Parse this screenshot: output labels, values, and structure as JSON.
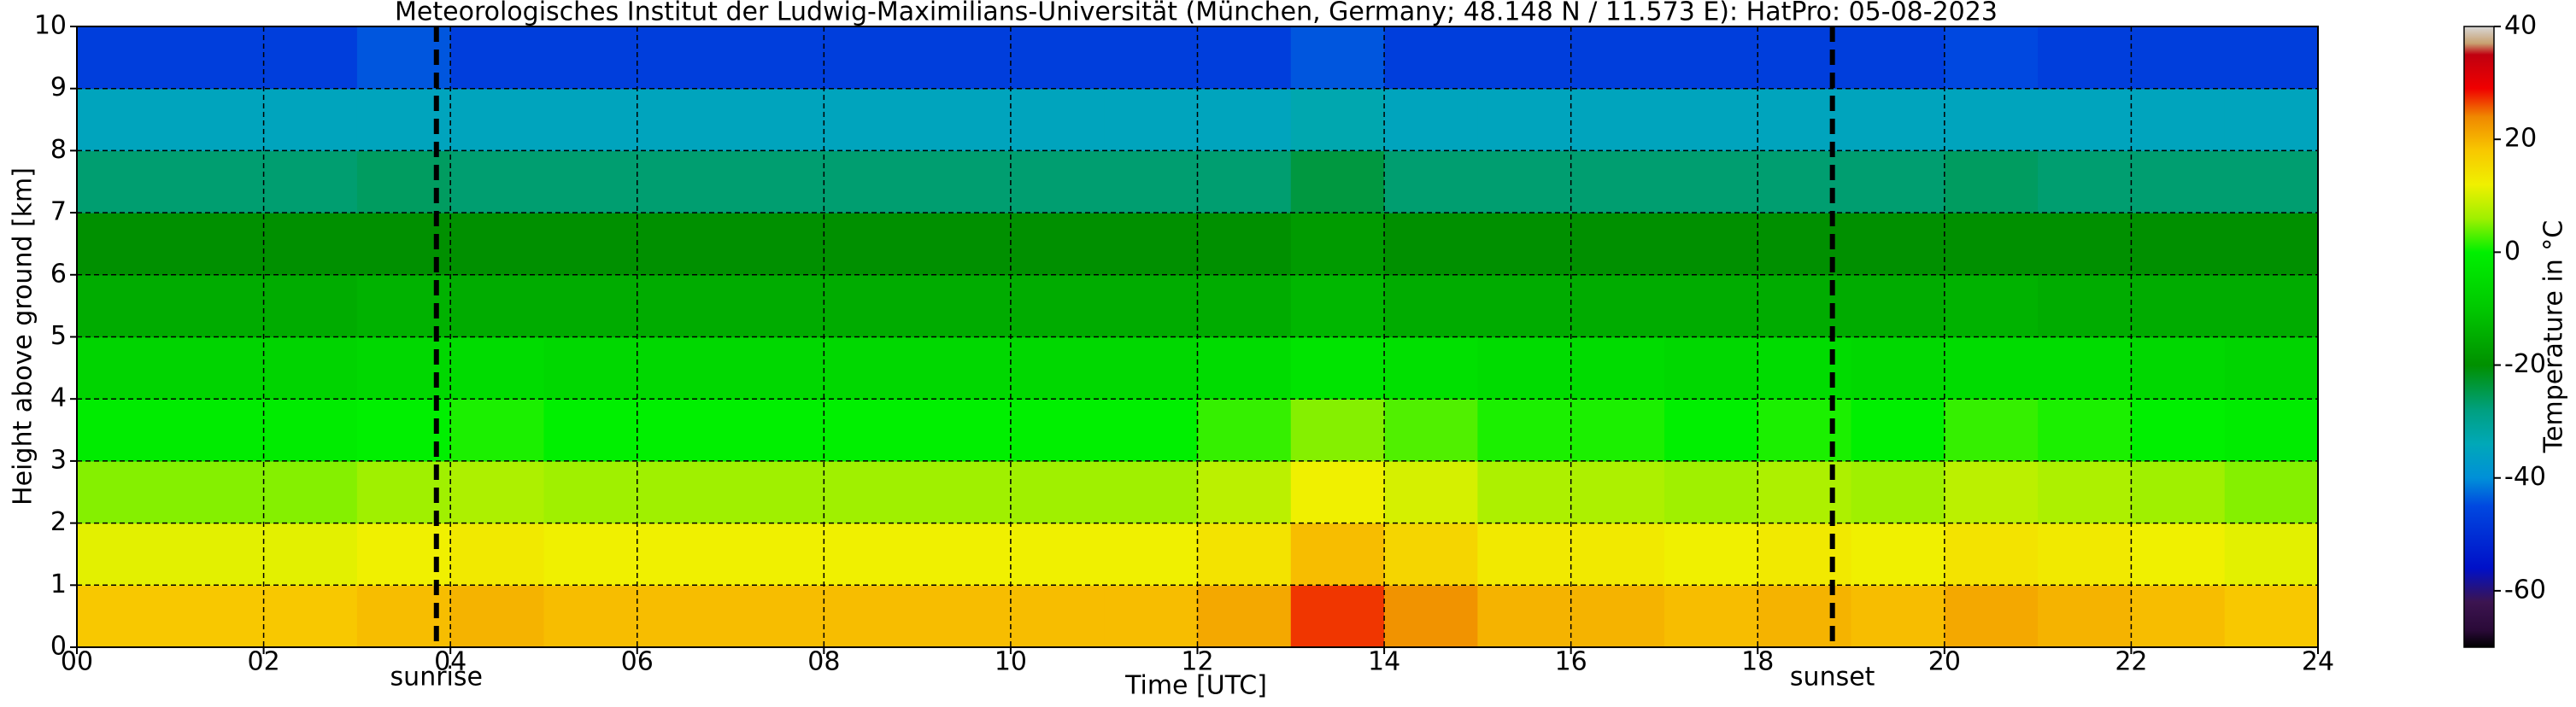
{
  "chart_data": {
    "type": "heatmap",
    "title": "Meteorologisches Institut der Ludwig-Maximilians-Universität (München, Germany; 48.148 N / 11.573 E):    HatPro: 05-08-2023",
    "x_label": "Time [UTC]",
    "y_label": "Height above ground [km]",
    "colorbar_label": "Temperature in °C",
    "xbins": [
      0,
      1,
      2,
      3,
      4,
      5,
      6,
      7,
      8,
      9,
      10,
      11,
      12,
      13,
      14,
      15,
      16,
      17,
      18,
      19,
      20,
      21,
      22,
      23,
      24
    ],
    "ybins": [
      0,
      1,
      2,
      3,
      4,
      5,
      6,
      7,
      8,
      9,
      10
    ],
    "values": [
      [
        18,
        18,
        18,
        19,
        20,
        19,
        19,
        19,
        19,
        19,
        19,
        19,
        21,
        27,
        23,
        20,
        20,
        19,
        20,
        19,
        21,
        20,
        19,
        18
      ],
      [
        11,
        11,
        11,
        12,
        13,
        12,
        12,
        12,
        12,
        12,
        12,
        12,
        14,
        19,
        16,
        13,
        13,
        12,
        13,
        12,
        14,
        13,
        12,
        11
      ],
      [
        5,
        5,
        5,
        6,
        7,
        6,
        6,
        6,
        6,
        6,
        6,
        6,
        8,
        12,
        10,
        7,
        7,
        6,
        7,
        6,
        8,
        7,
        6,
        5
      ],
      [
        -1,
        -1,
        -1,
        0,
        1,
        0,
        0,
        0,
        0,
        0,
        0,
        0,
        2,
        5,
        3,
        1,
        1,
        0,
        1,
        0,
        2,
        1,
        0,
        -1
      ],
      [
        -7,
        -7,
        -7,
        -6,
        -5,
        -6,
        -6,
        -6,
        -6,
        -6,
        -6,
        -6,
        -5,
        -3,
        -4,
        -5,
        -5,
        -6,
        -5,
        -6,
        -5,
        -5,
        -6,
        -7
      ],
      [
        -15,
        -15,
        -15,
        -14,
        -15,
        -15,
        -15,
        -15,
        -15,
        -15,
        -15,
        -15,
        -15,
        -13,
        -15,
        -15,
        -15,
        -15,
        -15,
        -15,
        -14,
        -15,
        -15,
        -15
      ],
      [
        -20,
        -20,
        -20,
        -20,
        -20,
        -20,
        -20,
        -20,
        -20,
        -20,
        -20,
        -20,
        -20,
        -18,
        -20,
        -20,
        -20,
        -20,
        -20,
        -20,
        -20,
        -20,
        -20,
        -20
      ],
      [
        -27,
        -27,
        -27,
        -26,
        -27,
        -27,
        -27,
        -27,
        -27,
        -27,
        -27,
        -27,
        -27,
        -24,
        -27,
        -27,
        -27,
        -27,
        -27,
        -27,
        -26,
        -27,
        -27,
        -27
      ],
      [
        -35,
        -35,
        -35,
        -35,
        -35,
        -35,
        -35,
        -35,
        -35,
        -35,
        -35,
        -35,
        -35,
        -33,
        -35,
        -35,
        -35,
        -35,
        -35,
        -35,
        -35,
        -35,
        -35,
        -35
      ],
      [
        -47,
        -47,
        -47,
        -44,
        -47,
        -47,
        -47,
        -47,
        -47,
        -47,
        -47,
        -47,
        -47,
        -44,
        -47,
        -47,
        -47,
        -47,
        -47,
        -47,
        -45,
        -47,
        -47,
        -47
      ]
    ],
    "xlim": [
      0,
      24
    ],
    "xticks": [
      {
        "value": 0,
        "label": "00"
      },
      {
        "value": 2,
        "label": "02"
      },
      {
        "value": 4,
        "label": "04"
      },
      {
        "value": 6,
        "label": "06"
      },
      {
        "value": 8,
        "label": "08"
      },
      10,
      12,
      14,
      16,
      18,
      20,
      22,
      24
    ],
    "ylim": [
      0,
      10
    ],
    "yticks": [
      0,
      1,
      2,
      3,
      4,
      5,
      6,
      7,
      8,
      9,
      10
    ],
    "clim": [
      -70,
      40
    ],
    "cticks": [
      -60,
      -40,
      -20,
      0,
      20,
      40
    ],
    "colormap": [
      {
        "value": -70,
        "color": "#000000"
      },
      {
        "value": -67,
        "color": "#2a0a38"
      },
      {
        "value": -62,
        "color": "#3c1450"
      },
      {
        "value": -56,
        "color": "#0010c8"
      },
      {
        "value": -45,
        "color": "#0048e0"
      },
      {
        "value": -40,
        "color": "#0090d8"
      },
      {
        "value": -34,
        "color": "#00a8b8"
      },
      {
        "value": -28,
        "color": "#00a080"
      },
      {
        "value": -20,
        "color": "#009000"
      },
      {
        "value": -10,
        "color": "#00c800"
      },
      {
        "value": 0,
        "color": "#00f000"
      },
      {
        "value": 6,
        "color": "#a0f000"
      },
      {
        "value": 12,
        "color": "#f0f000"
      },
      {
        "value": 18,
        "color": "#f8c800"
      },
      {
        "value": 24,
        "color": "#f08800"
      },
      {
        "value": 29,
        "color": "#f00000"
      },
      {
        "value": 35,
        "color": "#c00010"
      },
      {
        "value": 37,
        "color": "#c8a070"
      },
      {
        "value": 40,
        "color": "#d8d8d8"
      }
    ],
    "grid": true,
    "annotations": [
      {
        "label": "sunrise",
        "x": 3.85
      },
      {
        "label": "sunset",
        "x": 18.8
      }
    ]
  }
}
